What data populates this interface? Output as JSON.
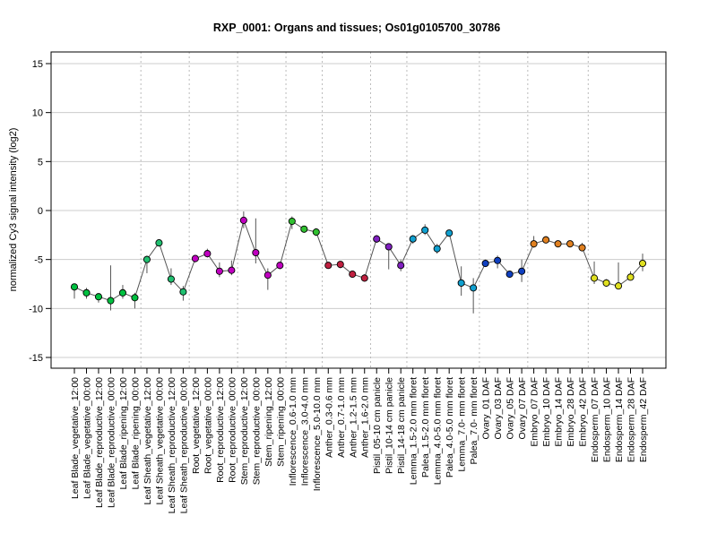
{
  "chart_data": {
    "type": "line",
    "title": "RXP_0001: Organs and tissues; Os01g0105700_30786",
    "ylabel": "normalized Cy3 signal intensity (log2)",
    "xlabel": "",
    "ylim": [
      -15,
      15
    ],
    "yticks": [
      -15,
      -10,
      -5,
      0,
      5,
      10,
      15
    ],
    "grid": "horizontal at y ticks; dotted vertical separators between sample groups",
    "categories": [
      "Leaf Blade_vegetative_12:00",
      "Leaf Blade_vegetative_00:00",
      "Leaf Blade_reproductive_12:00",
      "Leaf Blade_reproductive_00:00",
      "Leaf Blade_ripening_12:00",
      "Leaf Blade_ripening_00:00",
      "Leaf Sheath_vegetative_12:00",
      "Leaf Sheath_vegetative_00:00",
      "Leaf Sheath_reproductive_12:00",
      "Leaf Sheath_reproductive_00:00",
      "Root_vegetative_12:00",
      "Root_vegetative_00:00",
      "Root_reproductive_12:00",
      "Root_reproductive_00:00",
      "Stem_reproductive_12:00",
      "Stem_reproductive_00:00",
      "Stem_ripening_12:00",
      "Stem_ripening_00:00",
      "Inflorescence_0.6-1.0 mm",
      "Inflorescence_3.0-4.0 mm",
      "Inflorescence_5.0-10.0 mm",
      "Anther_0.3-0.6 mm",
      "Anther_0.7-1.0 mm",
      "Anther_1.2-1.5 mm",
      "Anther_1.6-2.0 mm",
      "Pistil_05-10 cm panicle",
      "Pistil_10-14 cm panicle",
      "Pistil_14-18 cm panicle",
      "Lemma_1.5-2.0 mm floret",
      "Palea_1.5-2.0 mm floret",
      "Lemma_4.0-5.0 mm floret",
      "Palea_4.0-5.0 mm floret",
      "Lemma_7.0- mm floret",
      "Palea_7.0- mm floret",
      "Ovary_01 DAF",
      "Ovary_03 DAF",
      "Ovary_05 DAF",
      "Ovary_07 DAF",
      "Embryo_07 DAF",
      "Embryo_10 DAF",
      "Embryo_14 DAF",
      "Embryo_28 DAF",
      "Embryo_42 DAF",
      "Endosperm_07 DAF",
      "Endosperm_10 DAF",
      "Endosperm_14 DAF",
      "Endosperm_28 DAF",
      "Endosperm_42 DAF"
    ],
    "values": [
      -7.8,
      -8.4,
      -8.8,
      -9.2,
      -8.4,
      -8.9,
      -5.0,
      -3.3,
      -7.0,
      -8.3,
      -4.9,
      -4.4,
      -6.2,
      -6.1,
      -1.0,
      -4.3,
      -6.6,
      -5.6,
      -1.1,
      -1.9,
      -2.2,
      -5.6,
      -5.5,
      -6.5,
      -6.9,
      -2.9,
      -3.7,
      -5.6,
      -2.9,
      -2.0,
      -3.9,
      -2.3,
      -7.4,
      -7.9,
      -5.4,
      -5.1,
      -6.5,
      -6.2,
      -3.4,
      -3.0,
      -3.4,
      -3.4,
      -3.8,
      -6.9,
      -7.4,
      -7.7,
      -6.8,
      -5.4
    ],
    "error_low": [
      -9.0,
      -9.0,
      -9.4,
      -10.2,
      -9.0,
      -10.0,
      -6.4,
      -3.6,
      -7.6,
      -9.2,
      -5.3,
      -4.8,
      -6.8,
      -6.6,
      -1.8,
      -5.4,
      -8.1,
      -6.0,
      -1.9,
      -2.2,
      -2.6,
      -5.8,
      -5.9,
      -6.8,
      -7.2,
      -3.3,
      -6.0,
      -6.2,
      -3.4,
      -2.5,
      -4.4,
      -2.6,
      -8.7,
      -10.5,
      -5.7,
      -5.9,
      -6.7,
      -7.3,
      -3.8,
      -3.3,
      -3.7,
      -3.6,
      -4.0,
      -7.5,
      -7.6,
      -8.0,
      -7.1,
      -6.2
    ],
    "error_high": [
      -7.6,
      -7.9,
      -8.6,
      -5.6,
      -7.6,
      -8.4,
      -4.6,
      -3.1,
      -5.9,
      -7.7,
      -4.7,
      -3.9,
      -5.3,
      -5.1,
      -0.1,
      -0.8,
      -5.9,
      -5.3,
      -0.6,
      -1.7,
      -1.8,
      -5.4,
      -5.2,
      -6.2,
      -6.5,
      -2.5,
      -3.4,
      -5.0,
      -2.5,
      -1.4,
      -3.4,
      -2.1,
      -5.7,
      -6.9,
      -5.0,
      -4.6,
      -6.2,
      -5.0,
      -2.6,
      -2.6,
      -3.2,
      -3.1,
      -3.3,
      -5.2,
      -7.0,
      -5.3,
      -6.2,
      -4.4
    ],
    "point_colors": [
      "#00c040",
      "#00c040",
      "#00c040",
      "#00c040",
      "#00c040",
      "#00c040",
      "#20c070",
      "#20c070",
      "#20c070",
      "#20c070",
      "#c000c0",
      "#c000c0",
      "#c000c0",
      "#c000c0",
      "#c000c0",
      "#c000c0",
      "#c000c0",
      "#c000c0",
      "#30c030",
      "#30c030",
      "#30c030",
      "#c02040",
      "#c02040",
      "#c02040",
      "#c02040",
      "#8020c0",
      "#8020c0",
      "#8020c0",
      "#10a0d0",
      "#10a0d0",
      "#10a0d0",
      "#10a0d0",
      "#10a0d0",
      "#10a0d0",
      "#1040c0",
      "#1040c0",
      "#1040c0",
      "#1040c0",
      "#e08020",
      "#e08020",
      "#e08020",
      "#e08020",
      "#e08020",
      "#e0e020",
      "#e0e020",
      "#e0e020",
      "#e0e020",
      "#e0e020"
    ],
    "group_separators_after_index": [
      5,
      9,
      13,
      17,
      20,
      24,
      27,
      33,
      37,
      42
    ],
    "colors": {
      "line": "#555555",
      "error_bar": "#555555",
      "grid": "#cccccc",
      "separator": "#bbbbbb",
      "frame": "#000000"
    }
  }
}
